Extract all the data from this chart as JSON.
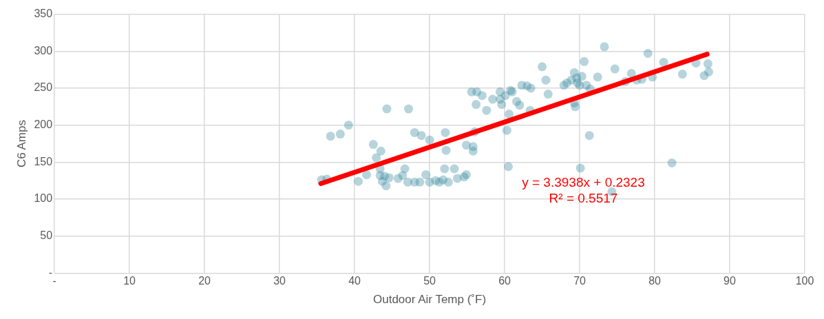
{
  "chart_data": {
    "type": "scatter",
    "xlabel": "Outdoor Air Temp (˚F)",
    "ylabel": "C6 Amps",
    "xlim": [
      0,
      100
    ],
    "xticks": [
      {
        "value": 0,
        "label": "-"
      },
      10,
      20,
      30,
      40,
      50,
      60,
      70,
      80,
      90,
      100
    ],
    "ylim": [
      0,
      350
    ],
    "yticks": [
      {
        "value": 0,
        "label": "-"
      },
      50,
      100,
      150,
      200,
      250,
      300,
      350
    ],
    "grid": true,
    "legend": false,
    "annotations": [
      "y = 3.3938x + 0.2323",
      "R² = 0.5517"
    ],
    "series": [
      {
        "color": "#31859c",
        "marker": "circle",
        "x": [
          35.6,
          36.3,
          36.8,
          38.1,
          39.2,
          40.5,
          41.6,
          42.5,
          42.9,
          43.4,
          43.5,
          43.4,
          44,
          43.7,
          44.2,
          44.3,
          44.6,
          45.8,
          46.4,
          46.7,
          47.2,
          47.1,
          48,
          48,
          48.7,
          48.9,
          49.5,
          50,
          50,
          50.8,
          51.3,
          51.8,
          52.1,
          52.2,
          52,
          52.5,
          53.3,
          53.7,
          54.6,
          54.9,
          54.9,
          55.6,
          55.8,
          55.8,
          56,
          56.2,
          56.3,
          57,
          57.6,
          58.4,
          59.4,
          59.4,
          59.6,
          60.1,
          60.3,
          60.6,
          60.8,
          61,
          60.5,
          61.6,
          62,
          62.3,
          63,
          63.5,
          63.4,
          65,
          65.5,
          65.8,
          67.9,
          68.3,
          68.9,
          69.3,
          69.6,
          69.7,
          70,
          69.3,
          69.4,
          70.1,
          70.3,
          70.6,
          70.9,
          71.4,
          71.3,
          72.4,
          73.3,
          74.3,
          74.7,
          76.1,
          76.9,
          77.6,
          78.3,
          79.1,
          79.7,
          81.2,
          82.3,
          83.7,
          85.5,
          86.6,
          87.1,
          87.2
        ],
        "values": [
          126,
          127,
          185,
          188,
          200,
          124,
          133,
          174,
          156,
          141,
          165,
          132,
          131,
          124,
          118,
          222,
          129,
          128,
          132,
          141,
          222,
          123,
          190,
          123,
          123,
          186,
          133,
          180,
          123,
          125,
          123,
          126,
          190,
          166,
          141,
          123,
          141,
          128,
          130,
          133,
          173,
          245,
          171,
          165,
          191,
          228,
          245,
          240,
          220,
          235,
          245,
          235,
          228,
          240,
          193,
          215,
          247,
          245,
          144,
          232,
          227,
          254,
          253,
          250,
          220,
          279,
          261,
          242,
          254,
          257,
          261,
          271,
          264,
          257,
          254,
          230,
          225,
          142,
          266,
          286,
          254,
          249,
          186,
          265,
          306,
          110,
          276,
          259,
          270,
          261,
          262,
          297,
          265,
          285,
          149,
          269,
          284,
          267,
          283,
          272
        ]
      },
      {
        "type": "line",
        "color": "#ff0000",
        "marker": "none",
        "x": [
          35.5,
          87
        ],
        "values": [
          121,
          296
        ]
      }
    ]
  }
}
